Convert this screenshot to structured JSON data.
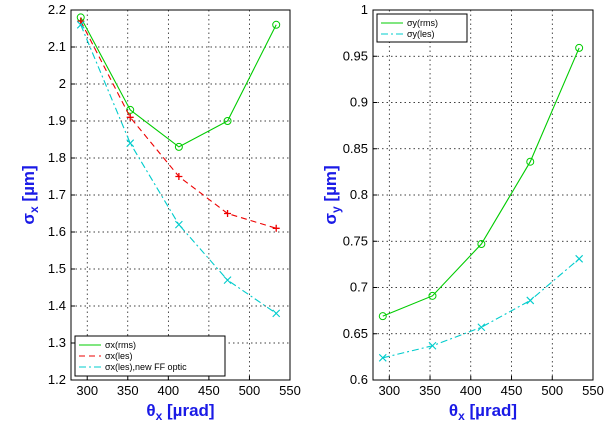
{
  "chart_data": [
    {
      "type": "line",
      "xlabel_symbol": "θ",
      "xlabel_sub": "x",
      "xlabel_unit": " [µrad]",
      "ylabel_symbol": "σ",
      "ylabel_sub": "x",
      "ylabel_unit": " [µm]",
      "xlim": [
        280,
        550
      ],
      "ylim": [
        1.2,
        2.2
      ],
      "xticks": [
        300,
        350,
        400,
        450,
        500,
        550
      ],
      "yticks": [
        1.2,
        1.3,
        1.4,
        1.5,
        1.6,
        1.7,
        1.8,
        1.9,
        2,
        2.1,
        2.2
      ],
      "grid": true,
      "legend_position": "bottom-left",
      "series": [
        {
          "name": "σx(rms)",
          "color": "#00cc00",
          "style": "solid",
          "marker": "circle",
          "x": [
            292,
            353,
            413,
            473,
            533
          ],
          "y": [
            2.18,
            1.93,
            1.83,
            1.9,
            2.16
          ]
        },
        {
          "name": "σx(les)",
          "color": "#ee0000",
          "style": "dashed",
          "marker": "plus",
          "x": [
            292,
            353,
            413,
            473,
            533
          ],
          "y": [
            2.17,
            1.91,
            1.75,
            1.65,
            1.61
          ]
        },
        {
          "name": "σx(les),new FF optic",
          "color": "#00cccc",
          "style": "dashdot",
          "marker": "x",
          "x": [
            292,
            353,
            413,
            473,
            533
          ],
          "y": [
            2.16,
            1.84,
            1.62,
            1.47,
            1.38
          ]
        }
      ]
    },
    {
      "type": "line",
      "xlabel_symbol": "θ",
      "xlabel_sub": "x",
      "xlabel_unit": " [µrad]",
      "ylabel_symbol": "σ",
      "ylabel_sub": "y",
      "ylabel_unit": " [µm]",
      "xlim": [
        280,
        550
      ],
      "ylim": [
        0.6,
        1.0
      ],
      "xticks": [
        300,
        350,
        400,
        450,
        500,
        550
      ],
      "yticks": [
        0.6,
        0.65,
        0.7,
        0.75,
        0.8,
        0.85,
        0.9,
        0.95,
        1
      ],
      "grid": true,
      "legend_position": "top-left",
      "series": [
        {
          "name": "σy(rms)",
          "color": "#00cc00",
          "style": "solid",
          "marker": "circle",
          "x": [
            292,
            353,
            413,
            473,
            533
          ],
          "y": [
            0.669,
            0.691,
            0.747,
            0.836,
            0.959
          ]
        },
        {
          "name": "σy(les)",
          "color": "#00cccc",
          "style": "dashdot",
          "marker": "x",
          "x": [
            292,
            353,
            413,
            473,
            533
          ],
          "y": [
            0.624,
            0.637,
            0.657,
            0.686,
            0.731
          ]
        }
      ]
    }
  ]
}
